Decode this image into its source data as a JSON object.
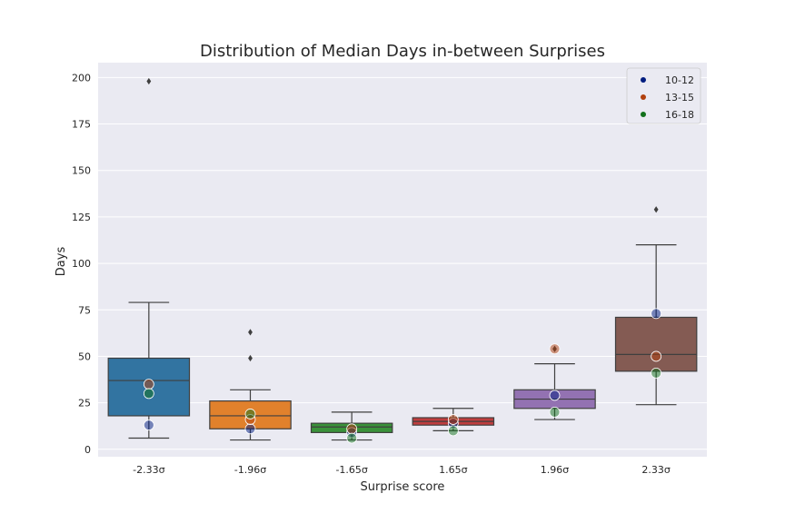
{
  "chart_data": {
    "type": "box",
    "title": "Distribution of Median Days in-between Surprises",
    "xlabel": "Surprise score",
    "ylabel": "Days",
    "ylim": [
      -4,
      208
    ],
    "yticks": [
      0,
      25,
      50,
      75,
      100,
      125,
      150,
      175,
      200
    ],
    "grid": true,
    "legend_position": "top-right",
    "categories": [
      "-2.33σ",
      "-1.96σ",
      "-1.65σ",
      "1.65σ",
      "1.96σ",
      "2.33σ"
    ],
    "boxes": [
      {
        "label": "-2.33σ",
        "color": "#3274a1",
        "whisker_low": 6,
        "q1": 18,
        "median": 37,
        "q3": 49,
        "whisker_high": 79,
        "outliers": [
          198
        ]
      },
      {
        "label": "-1.96σ",
        "color": "#e1812c",
        "whisker_low": 5,
        "q1": 11,
        "median": 18,
        "q3": 26,
        "whisker_high": 32,
        "outliers": [
          49,
          63
        ]
      },
      {
        "label": "-1.65σ",
        "color": "#3a923a",
        "whisker_low": 5,
        "q1": 9,
        "median": 12,
        "q3": 14,
        "whisker_high": 20,
        "outliers": []
      },
      {
        "label": "1.65σ",
        "color": "#c03d3e",
        "whisker_low": 10,
        "q1": 13,
        "median": 15,
        "q3": 17,
        "whisker_high": 22,
        "outliers": []
      },
      {
        "label": "1.96σ",
        "color": "#9372b2",
        "whisker_low": 16,
        "q1": 22,
        "median": 27,
        "q3": 32,
        "whisker_high": 46,
        "outliers": [
          54
        ]
      },
      {
        "label": "2.33σ",
        "color": "#845b53",
        "whisker_low": 24,
        "q1": 42,
        "median": 51,
        "q3": 71,
        "whisker_high": 110,
        "outliers": [
          129
        ]
      }
    ],
    "series": [
      {
        "name": "10-12",
        "color": "#001c7f",
        "values": [
          13,
          11,
          9,
          14,
          29,
          73
        ]
      },
      {
        "name": "13-15",
        "color": "#b1400d",
        "values": [
          35,
          16,
          11,
          16,
          54,
          50
        ]
      },
      {
        "name": "16-18",
        "color": "#12711c",
        "values": [
          30,
          19,
          6,
          10,
          20,
          41
        ]
      }
    ]
  }
}
